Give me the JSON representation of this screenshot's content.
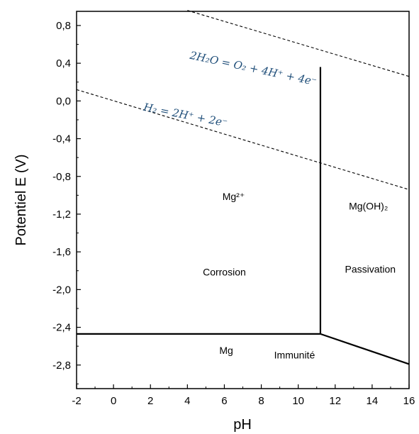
{
  "chart_data": {
    "type": "line",
    "title": "",
    "xlabel": "pH",
    "ylabel": "Potentiel E (V)",
    "xlim": [
      -2,
      16
    ],
    "ylim": [
      -3.05,
      0.95
    ],
    "xticks": [
      -2,
      0,
      2,
      4,
      6,
      8,
      10,
      12,
      14,
      16
    ],
    "xtick_labels": [
      "-2",
      "0",
      "2",
      "4",
      "6",
      "8",
      "10",
      "12",
      "14",
      "16"
    ],
    "yticks": [
      0.8,
      0.4,
      0.0,
      -0.4,
      -0.8,
      -1.2,
      -1.6,
      -2.0,
      -2.4,
      -2.8
    ],
    "ytick_labels": [
      "0,8",
      "0,4",
      "0,0",
      "-0,4",
      "-0,8",
      "-1,2",
      "-1,6",
      "-2,0",
      "-2,4",
      "-2,8"
    ],
    "grid": false,
    "boundaries": [
      {
        "name": "",
        "style": "solid",
        "x": [
          -2,
          11.2
        ],
        "y": [
          -2.47,
          -2.47
        ]
      },
      {
        "name": "",
        "style": "solid",
        "x": [
          11.2,
          11.2
        ],
        "y": [
          -2.47,
          0.36
        ]
      },
      {
        "name": "",
        "style": "solid",
        "x": [
          11.2,
          16
        ],
        "y": [
          -2.47,
          -2.79
        ]
      }
    ],
    "water_lines": [
      {
        "name": "",
        "style": "dashed",
        "x": [
          -2,
          16
        ],
        "y": [
          0.12,
          -0.94
        ]
      },
      {
        "name": "",
        "style": "dashed",
        "x": [
          4,
          16
        ],
        "y": [
          0.96,
          0.26
        ]
      }
    ],
    "equations": [
      {
        "text": "2H₂O = O₂ + 4H⁺ + 4e⁻",
        "x": 4.1,
        "y": 0.45,
        "angle": 12
      },
      {
        "text": "H₂ = 2H⁺ + 2e⁻",
        "x": 1.6,
        "y": -0.1,
        "angle": 11
      }
    ],
    "regions": [
      {
        "text": "Mg²⁺",
        "x": 6.5,
        "y": -1.05
      },
      {
        "text": "Corrosion",
        "x": 6.0,
        "y": -1.85
      },
      {
        "text": "Mg(OH)₂",
        "x": 13.8,
        "y": -1.15
      },
      {
        "text": "Passivation",
        "x": 13.9,
        "y": -1.82
      },
      {
        "text": "Mg",
        "x": 6.1,
        "y": -2.68
      },
      {
        "text": "Immunité",
        "x": 9.8,
        "y": -2.73
      }
    ]
  }
}
